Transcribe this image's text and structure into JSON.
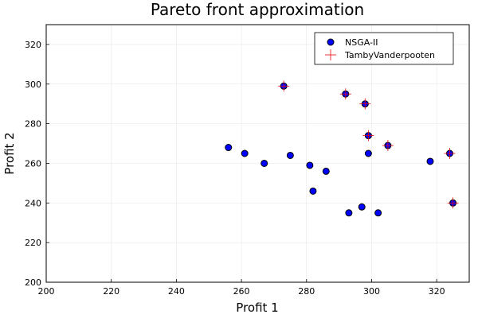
{
  "chart_data": {
    "type": "scatter",
    "title": "Pareto front approximation",
    "xlabel": "Profit 1",
    "ylabel": "Profit 2",
    "xlim": [
      200,
      330
    ],
    "ylim": [
      200,
      330
    ],
    "xticks": [
      200,
      220,
      240,
      260,
      280,
      300,
      320
    ],
    "yticks": [
      200,
      220,
      240,
      260,
      280,
      300,
      320
    ],
    "grid": true,
    "legend_position": "top-right",
    "series": [
      {
        "name": "NSGA-II",
        "marker": "circle",
        "color": "#0000ff",
        "points": [
          [
            256,
            268
          ],
          [
            261,
            265
          ],
          [
            267,
            260
          ],
          [
            273,
            299
          ],
          [
            275,
            264
          ],
          [
            281,
            259
          ],
          [
            282,
            246
          ],
          [
            286,
            256
          ],
          [
            292,
            295
          ],
          [
            293,
            235
          ],
          [
            297,
            238
          ],
          [
            298,
            290
          ],
          [
            299,
            274
          ],
          [
            299,
            265
          ],
          [
            302,
            235
          ],
          [
            305,
            269
          ],
          [
            318,
            261
          ],
          [
            324,
            265
          ],
          [
            325,
            240
          ]
        ]
      },
      {
        "name": "TambyVanderpooten",
        "marker": "cross",
        "color": "#e8000b",
        "points": [
          [
            273,
            299
          ],
          [
            292,
            295
          ],
          [
            298,
            290
          ],
          [
            299,
            274
          ],
          [
            305,
            269
          ],
          [
            324,
            265
          ],
          [
            325,
            240
          ]
        ]
      }
    ]
  }
}
